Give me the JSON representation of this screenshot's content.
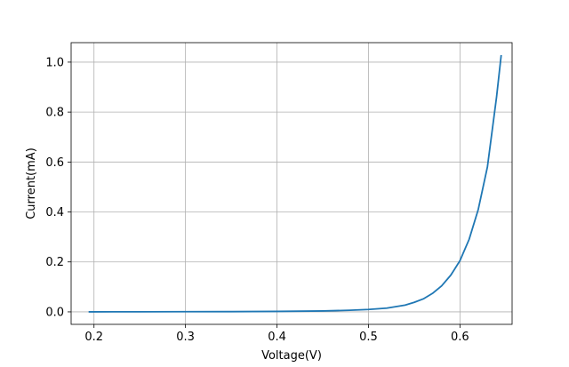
{
  "chart_data": {
    "type": "line",
    "title": "",
    "xlabel": "Voltage(V)",
    "ylabel": "Current(mA)",
    "xlim": [
      0.175,
      0.657
    ],
    "ylim": [
      -0.05,
      1.078
    ],
    "x_ticks": [
      0.2,
      0.3,
      0.4,
      0.5,
      0.6
    ],
    "x_tick_labels": [
      "0.2",
      "0.3",
      "0.4",
      "0.5",
      "0.6"
    ],
    "y_ticks": [
      0.0,
      0.2,
      0.4,
      0.6,
      0.8,
      1.0
    ],
    "y_tick_labels": [
      "0.0",
      "0.2",
      "0.4",
      "0.6",
      "0.8",
      "1.0"
    ],
    "grid": true,
    "legend": "none",
    "series": [
      {
        "color": "#1f77b4",
        "x": [
          0.195,
          0.25,
          0.3,
          0.35,
          0.4,
          0.45,
          0.48,
          0.5,
          0.52,
          0.54,
          0.55,
          0.56,
          0.57,
          0.58,
          0.59,
          0.6,
          0.61,
          0.62,
          0.63,
          0.64,
          0.645
        ],
        "y": [
          0.0,
          0.0003,
          0.0006,
          0.001,
          0.0018,
          0.0035,
          0.0065,
          0.0095,
          0.015,
          0.027,
          0.038,
          0.052,
          0.074,
          0.104,
          0.147,
          0.205,
          0.29,
          0.41,
          0.58,
          0.86,
          1.025
        ]
      }
    ]
  }
}
